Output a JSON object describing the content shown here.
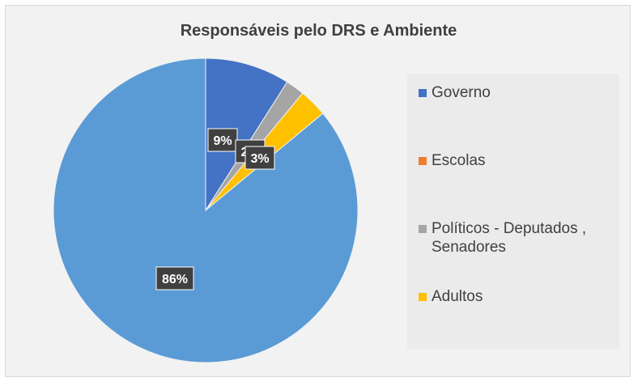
{
  "chart_data": {
    "type": "pie",
    "title": "Responsáveis pelo DRS e Ambiente",
    "legend_position": "right",
    "slices": [
      {
        "label": "Governo",
        "value": 9,
        "display": "9%",
        "color": "#4472c4"
      },
      {
        "label": "Escolas",
        "value": 0,
        "display": "0%",
        "color": "#ed7d31"
      },
      {
        "label": "Políticos - Deputados , Senadores",
        "value": 2,
        "display": "2%",
        "color": "#a5a5a5"
      },
      {
        "label": "Adultos",
        "value": 3,
        "display": "3%",
        "color": "#ffc000"
      },
      {
        "label": "",
        "value": 86,
        "display": "86%",
        "color": "#5b9bd5"
      }
    ],
    "legend": [
      {
        "label": "Governo",
        "color": "#4472c4",
        "lines": [
          "Governo"
        ]
      },
      {
        "label": "Escolas",
        "color": "#ed7d31",
        "lines": [
          "Escolas"
        ]
      },
      {
        "label": "Políticos - Deputados , Senadores",
        "color": "#a5a5a5",
        "lines": [
          "Políticos - Deputados ,",
          "Senadores"
        ]
      },
      {
        "label": "Adultos",
        "color": "#ffc000",
        "lines": [
          "Adultos"
        ]
      }
    ]
  }
}
